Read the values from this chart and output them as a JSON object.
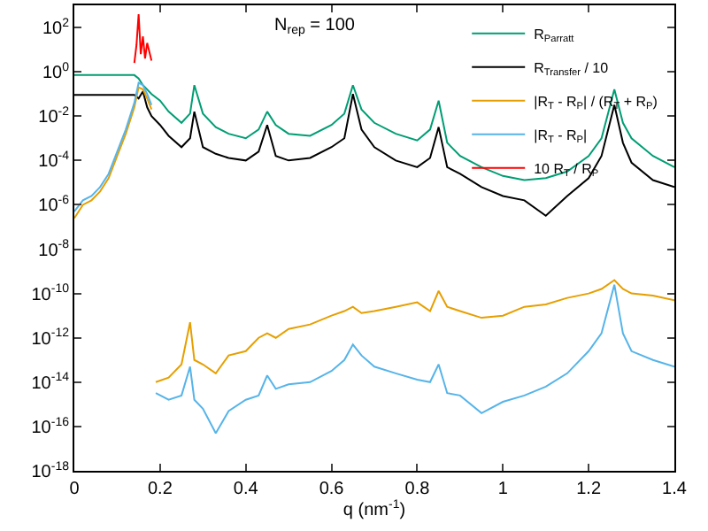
{
  "chart_data": {
    "type": "line",
    "xlabel": "q (nm$^{-1}$)",
    "annotations": [
      "N$_{rep}$ = 100"
    ],
    "log": "y",
    "legend": "top right",
    "xlim": [
      0,
      1.4
    ],
    "xticks": [
      0,
      0.2,
      0.4,
      0.6,
      0.8,
      1,
      1.2,
      1.4
    ],
    "ylim": [
      1e-18,
      1000.0
    ],
    "yticks": [
      {
        "value": 1e-18,
        "label": "10$^{-18}$"
      },
      {
        "value": 1e-16,
        "label": "10$^{-16}$"
      },
      {
        "value": 1e-14,
        "label": "10$^{-14}$"
      },
      {
        "value": 1e-12,
        "label": "10$^{-12}$"
      },
      {
        "value": 1e-10,
        "label": "10$^{-10}$"
      },
      {
        "value": 1e-08,
        "label": "10$^{-8}$"
      },
      {
        "value": 1e-06,
        "label": "10$^{-6}$"
      },
      {
        "value": 0.0001,
        "label": "10$^{-4}$"
      },
      {
        "value": 0.01,
        "label": "10$^{-2}$"
      },
      {
        "value": 1,
        "label": "10$^{0}$"
      },
      {
        "value": 100,
        "label": "10$^{2}$"
      }
    ],
    "series": [
      {
        "name": "R$_{Parratt}$",
        "color": "#009e73",
        "x": [
          0,
          0.05,
          0.1,
          0.14,
          0.15,
          0.16,
          0.17,
          0.18,
          0.2,
          0.22,
          0.25,
          0.27,
          0.28,
          0.3,
          0.33,
          0.36,
          0.4,
          0.43,
          0.45,
          0.47,
          0.5,
          0.55,
          0.6,
          0.63,
          0.65,
          0.67,
          0.7,
          0.75,
          0.8,
          0.83,
          0.85,
          0.87,
          0.9,
          0.95,
          1.0,
          1.05,
          1.1,
          1.15,
          1.2,
          1.23,
          1.26,
          1.28,
          1.3,
          1.35,
          1.4
        ],
        "values": [
          0.71,
          0.71,
          0.71,
          0.71,
          0.5,
          0.25,
          0.16,
          0.1,
          0.05,
          0.016,
          0.005,
          0.013,
          0.25,
          0.013,
          0.0032,
          0.0016,
          0.001,
          0.0025,
          0.016,
          0.004,
          0.0016,
          0.0013,
          0.004,
          0.013,
          0.25,
          0.02,
          0.005,
          0.0016,
          0.0008,
          0.0025,
          0.05,
          0.00063,
          0.00016,
          5e-05,
          2e-05,
          1.3e-05,
          1.6e-05,
          3.2e-05,
          0.00016,
          0.001,
          0.16,
          0.005,
          0.001,
          0.00016,
          5e-05
        ]
      },
      {
        "name": "R$_{Transfer}$ / 10",
        "color": "#000000",
        "x": [
          0,
          0.05,
          0.1,
          0.14,
          0.15,
          0.16,
          0.17,
          0.18,
          0.2,
          0.22,
          0.25,
          0.27,
          0.28,
          0.3,
          0.33,
          0.36,
          0.4,
          0.43,
          0.45,
          0.47,
          0.5,
          0.55,
          0.6,
          0.63,
          0.65,
          0.67,
          0.7,
          0.75,
          0.8,
          0.83,
          0.85,
          0.87,
          0.9,
          0.95,
          1.0,
          1.05,
          1.1,
          1.15,
          1.2,
          1.23,
          1.26,
          1.28,
          1.3,
          1.35,
          1.4
        ],
        "values": [
          0.09,
          0.09,
          0.09,
          0.09,
          0.063,
          0.13,
          0.025,
          0.01,
          0.004,
          0.0013,
          0.0004,
          0.001,
          0.016,
          0.0004,
          0.0002,
          0.00013,
          0.0001,
          0.00025,
          0.004,
          0.00016,
          0.0001,
          0.00013,
          0.0004,
          0.001,
          0.1,
          0.0025,
          0.0004,
          0.0001,
          5e-05,
          0.00013,
          0.0032,
          5e-05,
          2.5e-05,
          6.3e-06,
          2.5e-06,
          1.6e-06,
          3.2e-07,
          2.5e-06,
          1.6e-05,
          0.00016,
          0.032,
          0.00063,
          8e-05,
          1.3e-05,
          6.3e-06
        ]
      },
      {
        "name": "|R$_{T}$ - R$_{P}$| / (R$_{T}$ + R$_{P}$)",
        "color": "#e69f00",
        "x": [
          0,
          0.02,
          0.04,
          0.06,
          0.08,
          0.1,
          0.12,
          0.14,
          0.15,
          0.16,
          0.17,
          0.18,
          0.185,
          0.19,
          0.22,
          0.25,
          0.27,
          0.28,
          0.3,
          0.33,
          0.36,
          0.4,
          0.43,
          0.45,
          0.47,
          0.5,
          0.55,
          0.6,
          0.63,
          0.65,
          0.67,
          0.7,
          0.75,
          0.8,
          0.83,
          0.85,
          0.87,
          0.9,
          0.95,
          1.0,
          1.05,
          1.1,
          1.15,
          1.2,
          1.23,
          1.26,
          1.28,
          1.3,
          1.35,
          1.4
        ],
        "values": [
          2.5e-07,
          1e-06,
          1.6e-06,
          4e-06,
          1.6e-05,
          0.00016,
          0.0016,
          0.025,
          0.2,
          0.16,
          0.063,
          0.02,
          null,
          1e-14,
          1.6e-14,
          6.3e-14,
          5e-12,
          1e-13,
          6.3e-14,
          2.5e-14,
          1.6e-13,
          2.5e-13,
          1e-12,
          1.6e-12,
          1e-12,
          2.5e-12,
          4e-12,
          1e-11,
          1.6e-11,
          2.5e-11,
          1.3e-11,
          1.6e-11,
          2.5e-11,
          4e-11,
          1.6e-11,
          1.3e-10,
          2.5e-11,
          1.6e-11,
          8e-12,
          1e-11,
          2.5e-11,
          3.2e-11,
          6.3e-11,
          1e-10,
          1.6e-10,
          4e-10,
          1.6e-10,
          1e-10,
          8e-11,
          5e-11
        ]
      },
      {
        "name": "|R$_{T}$ - R$_{P}$|",
        "color": "#56b4e9",
        "x": [
          0,
          0.02,
          0.04,
          0.06,
          0.08,
          0.1,
          0.12,
          0.14,
          0.15,
          0.16,
          0.17,
          0.18,
          0.185,
          0.19,
          0.22,
          0.25,
          0.27,
          0.28,
          0.3,
          0.33,
          0.36,
          0.4,
          0.43,
          0.45,
          0.47,
          0.5,
          0.55,
          0.6,
          0.63,
          0.65,
          0.67,
          0.7,
          0.75,
          0.8,
          0.83,
          0.85,
          0.87,
          0.9,
          0.95,
          1.0,
          1.05,
          1.1,
          1.15,
          1.2,
          1.23,
          1.26,
          1.28,
          1.3,
          1.35,
          1.4
        ],
        "values": [
          5e-07,
          1.6e-06,
          2.5e-06,
          6.3e-06,
          2.5e-05,
          0.00025,
          0.0025,
          0.04,
          0.32,
          0.25,
          0.1,
          0.032,
          null,
          3.2e-15,
          1.6e-15,
          2.5e-15,
          5e-14,
          1.6e-15,
          6.3e-16,
          5e-17,
          5e-16,
          1.6e-15,
          2.5e-15,
          2e-14,
          5e-15,
          8e-15,
          1e-14,
          3.2e-14,
          1e-13,
          5e-13,
          1.6e-13,
          5e-14,
          2.5e-14,
          1.3e-14,
          1e-14,
          6.3e-14,
          3.2e-15,
          2.5e-15,
          4e-16,
          1.3e-15,
          2.5e-15,
          6.3e-15,
          2.5e-14,
          2.5e-13,
          1.6e-12,
          2.5e-10,
          1.6e-12,
          2.5e-13,
          1e-13,
          5e-14
        ]
      },
      {
        "name": "10 R$_{T}$ / R$_{P}$",
        "color": "#ff0000",
        "x": [
          0.14,
          0.145,
          0.15,
          0.155,
          0.16,
          0.165,
          0.17,
          0.175,
          0.18
        ],
        "values": [
          2.5,
          16,
          400,
          6.3,
          40,
          4,
          20,
          8,
          3.2
        ]
      }
    ]
  }
}
